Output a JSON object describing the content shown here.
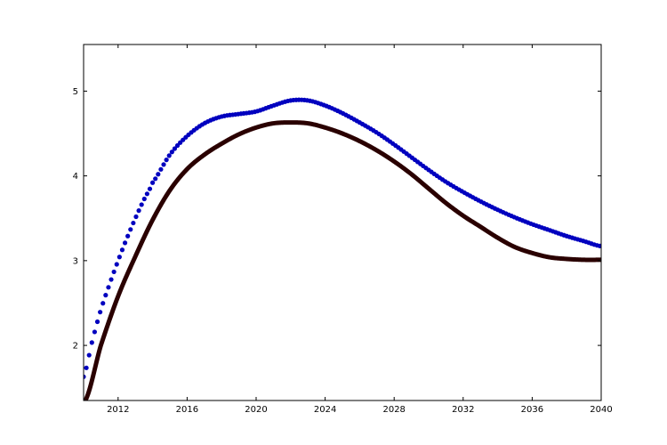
{
  "chart_data": {
    "type": "line",
    "title": "",
    "xlabel": "",
    "ylabel": "",
    "xlim": [
      2010,
      2040
    ],
    "ylim": [
      1.35,
      5.55
    ],
    "xticks": [
      2012,
      2016,
      2020,
      2024,
      2028,
      2032,
      2036,
      2040
    ],
    "xtick_labels": [
      "2012",
      "2016",
      "2020",
      "2024",
      "2028",
      "2032",
      "2036",
      "2040"
    ],
    "yticks": [
      2,
      3,
      4,
      5
    ],
    "ytick_labels": [
      "2",
      "3",
      "4",
      "5"
    ],
    "grid": false,
    "series": [
      {
        "style": "markers",
        "color": "#0000bf",
        "x": [
          2010,
          2010.5,
          2011,
          2011.5,
          2012,
          2012.5,
          2013,
          2013.5,
          2014,
          2015,
          2016,
          2017,
          2018,
          2019,
          2020,
          2021,
          2022,
          2023,
          2024,
          2025,
          2026,
          2027,
          2028,
          2029,
          2030,
          2031,
          2032,
          2033,
          2034,
          2035,
          2036,
          2037,
          2038,
          2039,
          2040
        ],
        "y": [
          1.63,
          2.05,
          2.42,
          2.72,
          3.0,
          3.26,
          3.5,
          3.72,
          3.92,
          4.25,
          4.47,
          4.62,
          4.7,
          4.73,
          4.76,
          4.83,
          4.89,
          4.89,
          4.83,
          4.74,
          4.63,
          4.51,
          4.37,
          4.22,
          4.07,
          3.93,
          3.81,
          3.7,
          3.6,
          3.51,
          3.43,
          3.36,
          3.29,
          3.23,
          3.17
        ]
      },
      {
        "style": "thick-line",
        "color": "#2a0000",
        "x": [
          2010.1,
          2011,
          2012,
          2013,
          2014,
          2015,
          2016,
          2017,
          2018,
          2019,
          2020,
          2021,
          2022,
          2023,
          2024,
          2025,
          2026,
          2027,
          2028,
          2029,
          2030,
          2031,
          2032,
          2033,
          2034,
          2035,
          2036,
          2037,
          2038,
          2039,
          2040
        ],
        "y": [
          1.35,
          2.0,
          2.58,
          3.05,
          3.48,
          3.83,
          4.08,
          4.25,
          4.38,
          4.49,
          4.57,
          4.62,
          4.63,
          4.62,
          4.57,
          4.5,
          4.41,
          4.3,
          4.17,
          4.02,
          3.85,
          3.68,
          3.53,
          3.4,
          3.27,
          3.16,
          3.09,
          3.04,
          3.02,
          3.01,
          3.01
        ]
      }
    ]
  }
}
